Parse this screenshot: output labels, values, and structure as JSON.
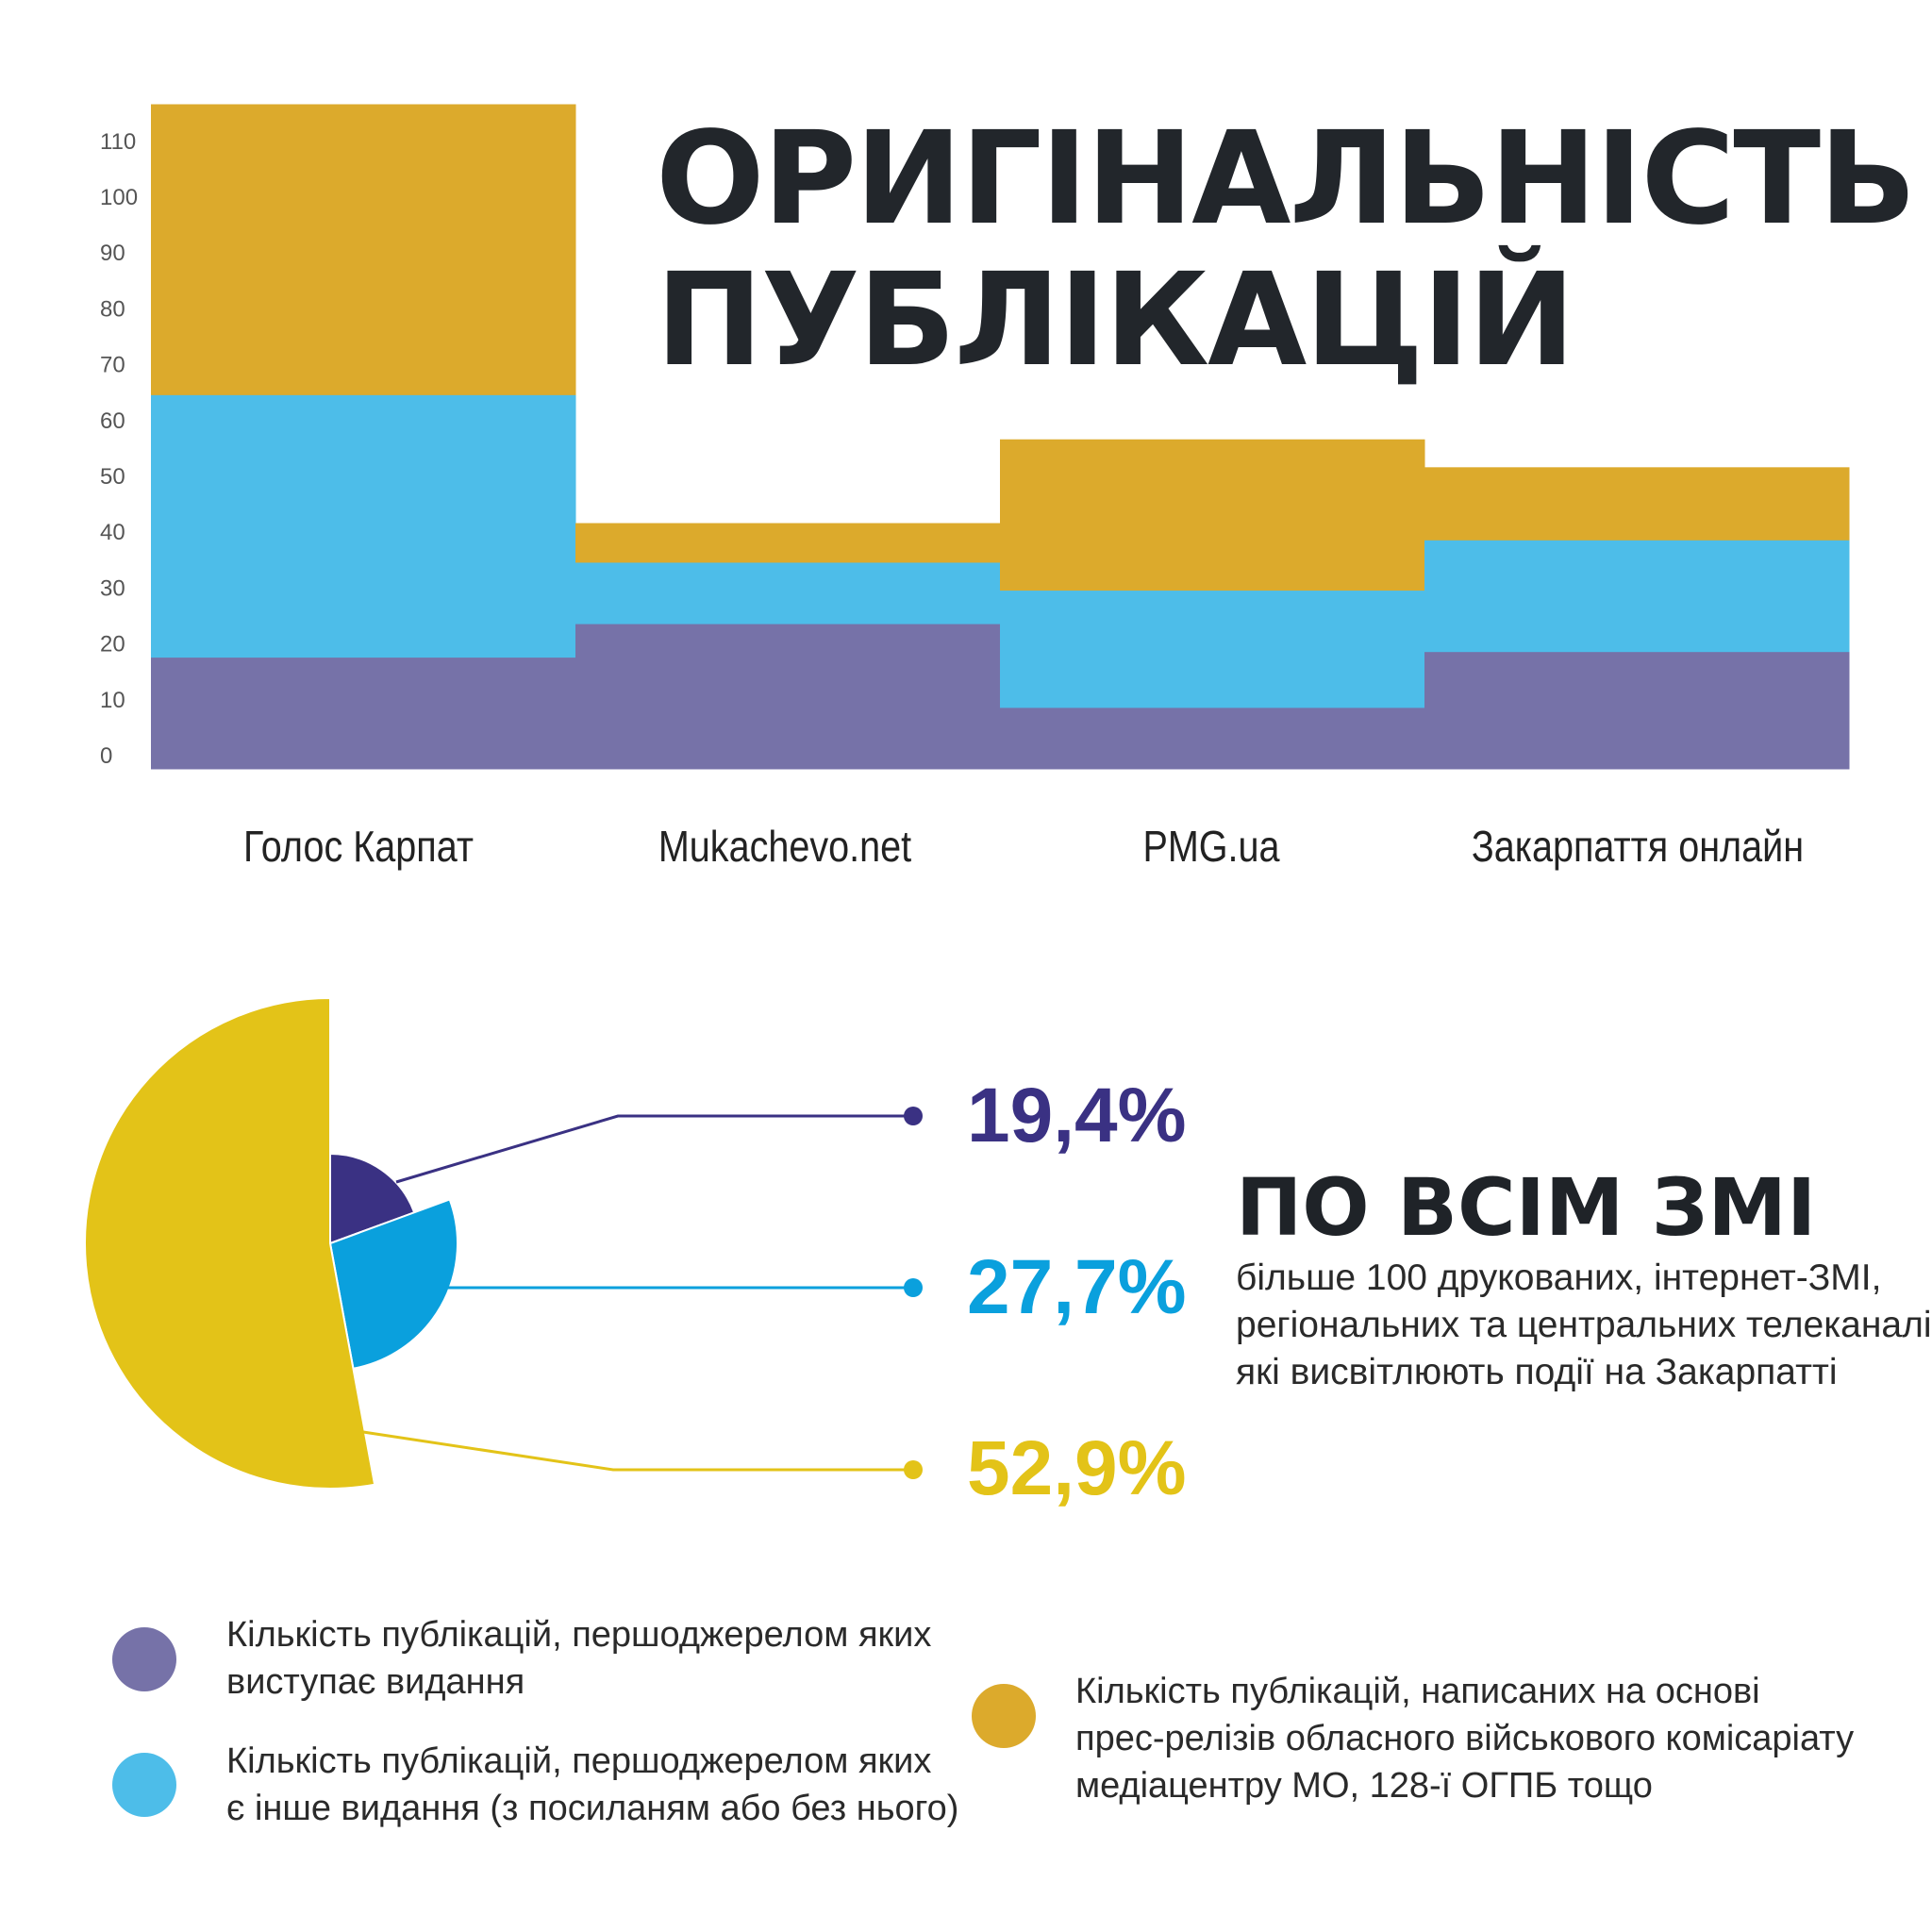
{
  "title": {
    "line1": "ОРИГІНАЛЬНІСТЬ",
    "line2": "ПУБЛІКАЦІЙ"
  },
  "colors": {
    "purple": "#7672a8",
    "blue": "#4dbde9",
    "gold": "#dcaa2c",
    "pie_purple": "#3a3183",
    "pie_blue": "#0aa0dd",
    "pie_gold": "#e3c318"
  },
  "chart_data": [
    {
      "type": "bar",
      "stacked": true,
      "categories": [
        "Голос Карпат",
        "Mukachevo.net",
        "PMG.ua",
        "Закарпаття онлайн"
      ],
      "series": [
        {
          "values": [
            20,
            26,
            11,
            21
          ],
          "color": "#7672a8"
        },
        {
          "values": [
            47,
            11,
            21,
            20
          ],
          "color": "#4dbde9"
        },
        {
          "values": [
            52,
            7,
            27,
            13
          ],
          "color": "#dcaa2c"
        }
      ],
      "yticks": [
        "0",
        "10",
        "20",
        "30",
        "40",
        "50",
        "60",
        "70",
        "80",
        "90",
        "100",
        "110"
      ],
      "ylim": [
        0,
        119
      ],
      "grid": false
    },
    {
      "type": "pie",
      "values": [
        19.4,
        27.7,
        52.9
      ],
      "labels": [
        "19,4%",
        "27,7%",
        "52,9%"
      ],
      "colors": [
        "#3a3183",
        "#0aa0dd",
        "#e3c318"
      ]
    }
  ],
  "headline": "ПО ВСІМ ЗМІ",
  "description": {
    "line1": "більше 100 друкованих, інтернет-ЗМІ,",
    "line2": "регіональних та центральних телеканалів,",
    "line3": "які висвітлюють події на Закарпатті"
  },
  "legend": [
    {
      "line1": "Кількість публікацій, першоджерелом яких",
      "line2": "виступає видання",
      "color": "#7672a8"
    },
    {
      "line1": "Кількість публікацій, першоджерелом яких",
      "line2": "є інше видання (з посиланям або без нього)",
      "color": "#4dbde9"
    },
    {
      "line1": "Кількість публікацій, написаних на основі",
      "line2": "прес-релізів обласного військового комісаріату",
      "line3": "медіацентру МО, 128-ї ОГПБ тощо",
      "color": "#dcaa2c"
    }
  ]
}
